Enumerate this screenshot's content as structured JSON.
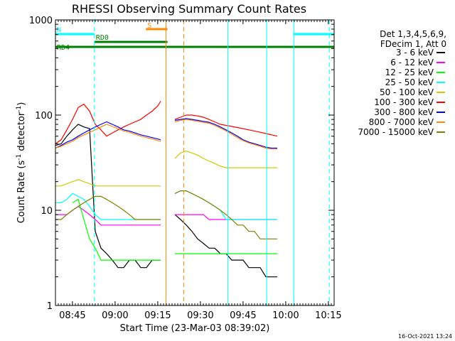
{
  "chart_data": {
    "type": "line",
    "title": "RHESSI Observing Summary Count Rates",
    "xlabel": "Start Time (23-Mar-03 08:39:02)",
    "ylabel_main": "Count Rate (s",
    "ylabel_sup1": "-1",
    "ylabel_mid": " detector",
    "ylabel_sup2": "-1",
    "ylabel_end": ")",
    "y_scale": "log",
    "ylim": [
      1,
      1000
    ],
    "xlim_minutes": [
      0,
      98
    ],
    "x_ticks": [
      {
        "label": "08:45",
        "minutes": 5.97
      },
      {
        "label": "09:00",
        "minutes": 20.97
      },
      {
        "label": "09:15",
        "minutes": 35.97
      },
      {
        "label": "09:30",
        "minutes": 50.97
      },
      {
        "label": "09:45",
        "minutes": 65.97
      },
      {
        "label": "10:00",
        "minutes": 80.97
      },
      {
        "label": "10:15",
        "minutes": 95.97
      }
    ],
    "y_ticks": [
      {
        "label": "1",
        "value": 1
      },
      {
        "label": "10",
        "value": 10
      },
      {
        "label": "100",
        "value": 100
      },
      {
        "label": "1000",
        "value": 1000
      }
    ],
    "legend_header": [
      "Det 1,3,4,5,6,9,",
      "FDecim 1, Att 0"
    ],
    "legend_position": "right",
    "series": [
      {
        "name": "3 - 6 keV",
        "color": "#000000",
        "x": [
          0,
          2,
          4,
          6,
          8,
          10,
          12,
          14,
          16,
          18,
          20,
          22,
          24,
          26,
          28,
          30,
          32,
          34,
          36,
          37,
          38,
          42,
          44,
          46,
          48,
          50,
          52,
          54,
          56,
          58,
          60,
          62,
          64,
          66,
          68,
          70,
          72,
          74,
          76,
          78
        ],
        "y": [
          48,
          50,
          60,
          70,
          80,
          75,
          72,
          6,
          4,
          3.5,
          3,
          2.5,
          2.5,
          3,
          3,
          2.5,
          2.5,
          3,
          3,
          3,
          null,
          9,
          8,
          7,
          6,
          5,
          4.5,
          4,
          4,
          3.5,
          3.5,
          3,
          3,
          3,
          2.5,
          2.5,
          2.5,
          2,
          2,
          2
        ]
      },
      {
        "name": "6 - 12 keV",
        "color": "#ff00ff",
        "x": [
          0,
          2,
          4,
          6,
          8,
          10,
          12,
          14,
          16,
          18,
          20,
          22,
          24,
          26,
          28,
          30,
          32,
          34,
          36,
          37,
          38,
          42,
          44,
          46,
          48,
          50,
          52,
          54,
          56,
          58,
          60,
          62,
          64,
          66,
          68,
          70,
          72,
          74,
          76,
          78
        ],
        "y": [
          9,
          9,
          9,
          10,
          11,
          10,
          9,
          8,
          7,
          7,
          7,
          7,
          7,
          7,
          7,
          7,
          7,
          7,
          7,
          7,
          null,
          9,
          9,
          9,
          9,
          9,
          9,
          8,
          8,
          8,
          8,
          8,
          8,
          8,
          8,
          8,
          8,
          8,
          8,
          8
        ]
      },
      {
        "name": "12 - 25 keV",
        "color": "#00ff00",
        "x": [
          0,
          2,
          4,
          6,
          8,
          10,
          12,
          14,
          16,
          18,
          20,
          22,
          24,
          26,
          28,
          30,
          32,
          34,
          36,
          37,
          38,
          42,
          44,
          46,
          48,
          50,
          52,
          54,
          56,
          58,
          60,
          62,
          64,
          66,
          68,
          70,
          72,
          74,
          76,
          78
        ],
        "y": [
          null,
          null,
          null,
          12,
          13,
          8,
          5,
          4,
          3,
          3,
          3,
          3,
          3,
          3,
          3,
          3,
          3,
          3,
          3,
          3,
          null,
          3.5,
          3.5,
          3.5,
          3.5,
          3.5,
          3.5,
          3.5,
          3.5,
          3.5,
          3.5,
          3.5,
          3.5,
          3.5,
          3.5,
          3.5,
          3.5,
          3.5,
          3.5,
          3.5
        ]
      },
      {
        "name": "25 - 50 keV",
        "color": "#00ffff",
        "x": [
          0,
          2,
          4,
          6,
          8,
          10,
          12,
          14,
          16,
          18,
          20,
          22,
          24,
          26,
          28,
          30,
          32,
          34,
          36,
          37,
          38,
          42,
          44,
          46,
          48,
          50,
          52,
          54,
          56,
          58,
          60,
          62,
          64,
          66,
          68,
          70,
          72,
          74,
          76,
          78
        ],
        "y": [
          12,
          12,
          13,
          15,
          14,
          13,
          11,
          9,
          8,
          8,
          8,
          8,
          8,
          8,
          8,
          8,
          8,
          8,
          8,
          8,
          null,
          15,
          16,
          16,
          15,
          14,
          13,
          12,
          11,
          10,
          8,
          8,
          8,
          8,
          8,
          8,
          8,
          8,
          8,
          8
        ]
      },
      {
        "name": "50 - 100 keV",
        "color": "#cccc00",
        "x": [
          0,
          2,
          4,
          6,
          8,
          10,
          12,
          14,
          16,
          18,
          20,
          22,
          24,
          26,
          28,
          30,
          32,
          34,
          36,
          37,
          38,
          42,
          44,
          46,
          48,
          50,
          52,
          54,
          56,
          58,
          60,
          62,
          64,
          66,
          68,
          70,
          72,
          74,
          76,
          78
        ],
        "y": [
          18,
          18,
          19,
          20,
          21,
          20,
          19,
          18,
          18,
          18,
          18,
          18,
          18,
          18,
          18,
          18,
          18,
          18,
          18,
          18,
          null,
          35,
          40,
          42,
          40,
          38,
          35,
          33,
          31,
          29,
          28,
          28,
          28,
          28,
          28,
          28,
          28,
          28,
          28,
          28
        ]
      },
      {
        "name": "100 - 300 keV",
        "color": "#ff0000",
        "x": [
          0,
          2,
          4,
          6,
          8,
          10,
          12,
          14,
          16,
          18,
          20,
          22,
          24,
          26,
          28,
          30,
          32,
          34,
          36,
          37,
          38,
          42,
          44,
          46,
          48,
          50,
          52,
          54,
          56,
          58,
          60,
          62,
          64,
          66,
          68,
          70,
          72,
          74,
          76,
          78
        ],
        "y": [
          50,
          55,
          70,
          90,
          120,
          130,
          110,
          80,
          70,
          60,
          65,
          70,
          75,
          80,
          85,
          90,
          100,
          110,
          125,
          140,
          null,
          90,
          95,
          100,
          100,
          98,
          95,
          90,
          85,
          80,
          78,
          76,
          74,
          72,
          70,
          68,
          66,
          64,
          62,
          60
        ]
      },
      {
        "name": "300 - 800 keV",
        "color": "#0000ff",
        "x": [
          0,
          2,
          4,
          6,
          8,
          10,
          12,
          14,
          16,
          18,
          20,
          22,
          24,
          26,
          28,
          30,
          32,
          34,
          36,
          37,
          38,
          42,
          44,
          46,
          48,
          50,
          52,
          54,
          56,
          58,
          60,
          62,
          64,
          66,
          68,
          70,
          72,
          74,
          76,
          78
        ],
        "y": [
          45,
          48,
          52,
          55,
          60,
          65,
          70,
          75,
          80,
          85,
          80,
          75,
          70,
          68,
          65,
          62,
          60,
          58,
          56,
          55,
          null,
          88,
          90,
          92,
          90,
          88,
          86,
          84,
          80,
          75,
          70,
          65,
          60,
          55,
          52,
          50,
          48,
          46,
          45,
          45
        ]
      },
      {
        "name": "800 - 7000 keV",
        "color": "#ff8800",
        "x": [
          0,
          2,
          4,
          6,
          8,
          10,
          12,
          14,
          16,
          18,
          20,
          22,
          24,
          26,
          28,
          30,
          32,
          34,
          36,
          37,
          38,
          42,
          44,
          46,
          48,
          50,
          52,
          54,
          56,
          58,
          60,
          62,
          64,
          66,
          68,
          70,
          72,
          74,
          76,
          78
        ],
        "y": [
          45,
          47,
          50,
          53,
          58,
          62,
          66,
          70,
          75,
          80,
          76,
          72,
          68,
          66,
          63,
          60,
          58,
          56,
          54,
          53,
          null,
          85,
          88,
          90,
          88,
          86,
          84,
          82,
          78,
          73,
          68,
          63,
          58,
          54,
          51,
          49,
          47,
          45,
          44,
          44
        ]
      },
      {
        "name": "7000 - 15000 keV",
        "color": "#808000",
        "x": [
          0,
          2,
          4,
          6,
          8,
          10,
          12,
          14,
          16,
          18,
          20,
          22,
          24,
          26,
          28,
          30,
          32,
          34,
          36,
          37,
          38,
          42,
          44,
          46,
          48,
          50,
          52,
          54,
          56,
          58,
          60,
          62,
          64,
          66,
          68,
          70,
          72,
          74,
          76,
          78
        ],
        "y": [
          8,
          8,
          9,
          10,
          11,
          12,
          13,
          14,
          14,
          13,
          12,
          11,
          10,
          9,
          8,
          8,
          8,
          8,
          8,
          8,
          null,
          15,
          16,
          16,
          15,
          14,
          13,
          12,
          11,
          10,
          9,
          8,
          7,
          7,
          6,
          6,
          5,
          5,
          5,
          5
        ]
      }
    ],
    "flag_segments": [
      {
        "label": "N",
        "color": "#00ffff",
        "x0": 0,
        "x1": 13.7
      },
      {
        "label": "",
        "color": "#00ffff",
        "x0": 0,
        "x1": 13.7
      },
      {
        "label": "S",
        "color": "#ff8800",
        "x0": 31.8,
        "x1": 39.4
      },
      {
        "label": "RD0",
        "color": "#008000",
        "x0": 13.7,
        "x1": 39.4
      },
      {
        "label": "RD4",
        "color": "#008000",
        "x0": 0,
        "x1": 98
      },
      {
        "label": "",
        "color": "#00ffff",
        "x0": 83.8,
        "x1": 98
      }
    ],
    "vertical_markers": [
      {
        "minutes": 13.7,
        "color": "#00ffff",
        "dashed": true
      },
      {
        "minutes": 38.9,
        "color": "#ff8800",
        "dashed": false
      },
      {
        "minutes": 45.1,
        "color": "#ff8800",
        "dashed": true
      },
      {
        "minutes": 60.6,
        "color": "#00ffff",
        "dashed": false
      },
      {
        "minutes": 74.3,
        "color": "#00ffff",
        "dashed": false
      },
      {
        "minutes": 83.8,
        "color": "#00ffff",
        "dashed": false
      },
      {
        "minutes": 96.3,
        "color": "#00ffff",
        "dashed": true
      }
    ],
    "footer_date": "16-Oct-2021 13:24"
  }
}
